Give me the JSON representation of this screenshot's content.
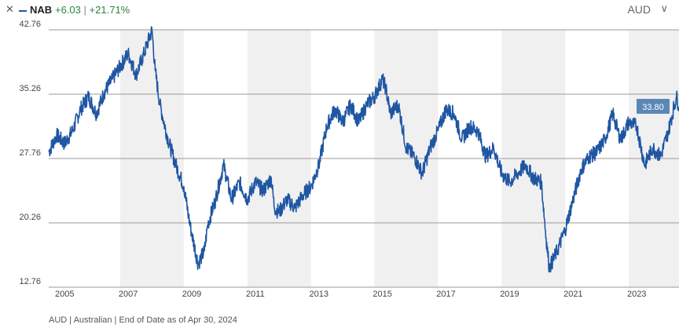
{
  "header": {
    "close_symbol": "✕",
    "ticker": "NAB",
    "change_abs": "+6.03",
    "change_pct": "+21.71%",
    "currency": "AUD",
    "chevron_symbol": "∨",
    "icons": [
      "close-icon",
      "chevron-down-icon"
    ]
  },
  "footer": {
    "note": "AUD | Australian | End of Date as of Apr 30, 2024"
  },
  "colors": {
    "line": "#1f56a3",
    "shade": "#f0f0f0",
    "grid": "#9a9a9a",
    "badge": "#5b87b6",
    "positive": "#2e8540"
  },
  "chart_data": {
    "type": "line",
    "series": [
      {
        "name": "NAB",
        "x": [
          2004.5,
          2004.75,
          2005.0,
          2005.25,
          2005.5,
          2005.75,
          2006.0,
          2006.25,
          2006.5,
          2006.75,
          2007.0,
          2007.25,
          2007.5,
          2007.75,
          2007.85,
          2008.0,
          2008.25,
          2008.5,
          2008.75,
          2008.9,
          2009.0,
          2009.2,
          2009.4,
          2009.5,
          2009.75,
          2010.0,
          2010.25,
          2010.5,
          2010.75,
          2011.0,
          2011.25,
          2011.5,
          2011.6,
          2011.75,
          2012.0,
          2012.25,
          2012.5,
          2012.75,
          2013.0,
          2013.25,
          2013.5,
          2013.75,
          2014.0,
          2014.25,
          2014.5,
          2014.75,
          2015.0,
          2015.1,
          2015.25,
          2015.5,
          2015.75,
          2016.0,
          2016.25,
          2016.5,
          2016.75,
          2017.0,
          2017.25,
          2017.5,
          2017.75,
          2018.0,
          2018.25,
          2018.5,
          2018.75,
          2019.0,
          2019.25,
          2019.5,
          2019.75,
          2020.0,
          2020.15,
          2020.25,
          2020.5,
          2020.75,
          2021.0,
          2021.25,
          2021.5,
          2021.75,
          2022.0,
          2022.25,
          2022.4,
          2022.5,
          2022.75,
          2023.0,
          2023.25,
          2023.5,
          2023.75,
          2024.0,
          2024.25,
          2024.33
        ],
        "values": [
          28.5,
          30.5,
          29.5,
          31.0,
          33.5,
          35.0,
          33.0,
          35.5,
          37.0,
          38.5,
          40.0,
          37.5,
          40.0,
          42.76,
          38.0,
          34.0,
          30.0,
          27.0,
          24.5,
          21.0,
          19.0,
          15.5,
          17.0,
          20.0,
          23.0,
          27.0,
          23.0,
          25.0,
          23.0,
          25.0,
          24.0,
          25.5,
          22.0,
          21.5,
          23.0,
          22.0,
          23.5,
          24.5,
          27.0,
          31.5,
          33.5,
          32.0,
          34.0,
          32.0,
          34.0,
          35.0,
          37.0,
          36.0,
          33.0,
          34.0,
          29.0,
          28.0,
          26.0,
          29.0,
          31.0,
          33.5,
          33.0,
          30.0,
          31.5,
          31.0,
          28.0,
          29.0,
          26.0,
          25.0,
          26.0,
          27.0,
          25.5,
          25.0,
          18.5,
          15.0,
          17.0,
          19.5,
          23.0,
          26.5,
          28.0,
          28.5,
          30.0,
          33.0,
          31.0,
          30.0,
          32.0,
          31.5,
          27.0,
          29.0,
          28.0,
          31.0,
          35.0,
          33.8
        ]
      }
    ],
    "x_ticks": [
      "2005",
      "2007",
      "2009",
      "2011",
      "2013",
      "2015",
      "2017",
      "2019",
      "2021",
      "2023"
    ],
    "y_ticks": [
      "12.76",
      "20.26",
      "27.76",
      "35.26",
      "42.76"
    ],
    "ylim": [
      12.76,
      42.76
    ],
    "last_value_label": "33.80",
    "grid": true,
    "shaded_bands": [
      [
        2006.75,
        2008.75
      ],
      [
        2010.75,
        2012.75
      ],
      [
        2014.75,
        2016.75
      ],
      [
        2018.75,
        2020.75
      ],
      [
        2022.75,
        2024.33
      ]
    ]
  }
}
